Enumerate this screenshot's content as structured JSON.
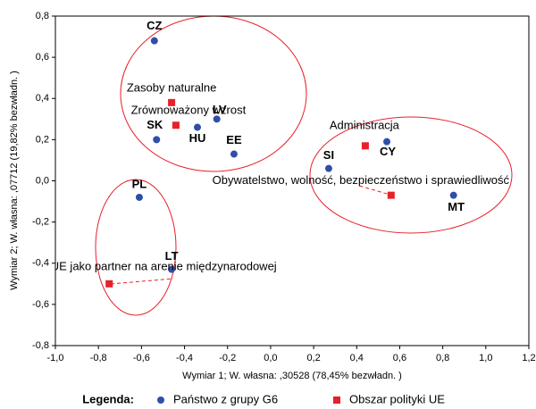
{
  "chart_data": {
    "type": "scatter",
    "x_label": "Wymiar   1; W. własna:  ,30528 (78,45% bezwładn. )",
    "y_label": "Wymiar   2; W. własna:  ,07712 (19,82% bezwładn. )",
    "xlim": [
      -1.0,
      1.2
    ],
    "ylim": [
      -0.8,
      0.8
    ],
    "xticks": [
      {
        "value": -1.0,
        "label": "-1,0"
      },
      {
        "value": -0.8,
        "label": "-0,8"
      },
      {
        "value": -0.6,
        "label": "-0,6"
      },
      {
        "value": -0.4,
        "label": "-0,4"
      },
      {
        "value": -0.2,
        "label": "-0,2"
      },
      {
        "value": 0,
        "label": "0,0"
      },
      {
        "value": 0.2,
        "label": "0,2"
      },
      {
        "value": 0.4,
        "label": "0,4"
      },
      {
        "value": 0.6,
        "label": "0,6"
      },
      {
        "value": 0.8,
        "label": "0,8"
      },
      {
        "value": 1.0,
        "label": "1,0"
      },
      {
        "value": 1.2,
        "label": "1,2"
      }
    ],
    "yticks": [
      {
        "value": -0.8,
        "label": "-0,8"
      },
      {
        "value": -0.6,
        "label": "-0,6"
      },
      {
        "value": -0.4,
        "label": "-0,4"
      },
      {
        "value": -0.2,
        "label": "-0,2"
      },
      {
        "value": 0,
        "label": "0,0"
      },
      {
        "value": 0.2,
        "label": "0,2"
      },
      {
        "value": 0.4,
        "label": "0,4"
      },
      {
        "value": 0.6,
        "label": "0,6"
      },
      {
        "value": 0.8,
        "label": "0,8"
      }
    ],
    "legend_title": "Legenda:",
    "series": [
      {
        "name": "Państwo z grupy G6",
        "color": "#2e4fa8",
        "marker": "circle",
        "labels": [
          "CZ",
          "SK",
          "HU",
          "LV",
          "EE",
          "PL",
          "LT",
          "SI",
          "CY",
          "MT"
        ],
        "x": [
          -0.54,
          -0.53,
          -0.34,
          -0.25,
          -0.17,
          -0.61,
          -0.46,
          0.27,
          0.54,
          0.85
        ],
        "values": [
          0.68,
          0.2,
          0.26,
          0.3,
          0.13,
          -0.08,
          -0.43,
          0.06,
          0.19,
          -0.07
        ]
      },
      {
        "name": "Obszar polityki UE",
        "color": "#e8202a",
        "marker": "square",
        "labels": [
          "Zasoby naturalne",
          "Zrównoważony wzrost",
          "Administracja",
          "Obywatelstwo, wolność, bezpieczeństwo i sprawiedliwość",
          "UE jako partner na arenie międzynarodowej"
        ],
        "x": [
          -0.46,
          -0.44,
          0.44,
          0.56,
          -0.75
        ],
        "values": [
          0.38,
          0.27,
          0.17,
          -0.07,
          -0.5
        ]
      }
    ]
  }
}
